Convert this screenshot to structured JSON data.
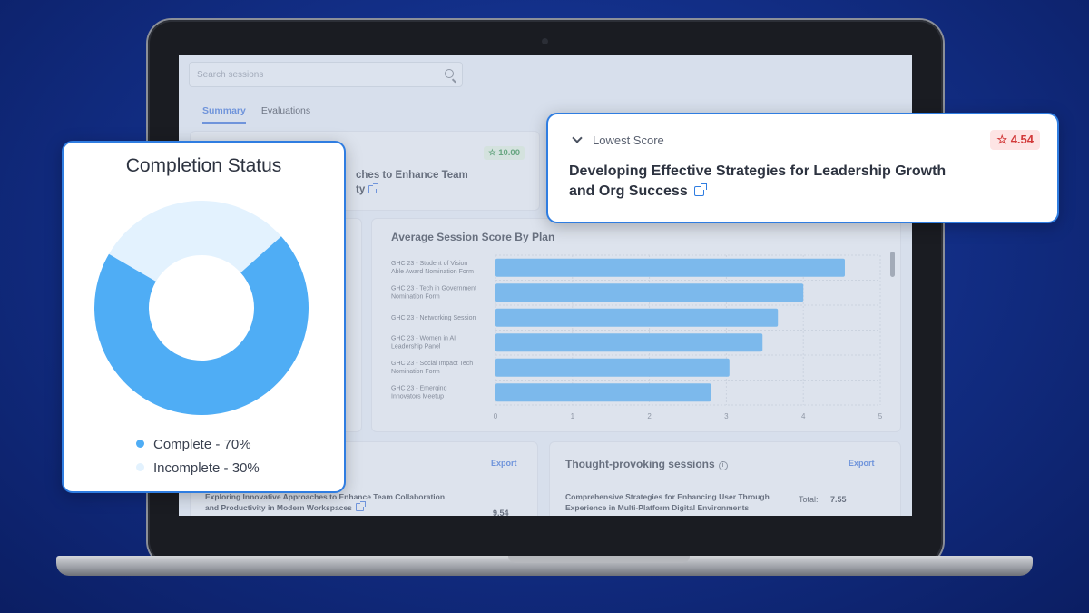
{
  "search": {
    "placeholder": "Search sessions"
  },
  "tabs": [
    {
      "label": "Summary",
      "active": true
    },
    {
      "label": "Evaluations",
      "active": false
    }
  ],
  "highest": {
    "score": "10.00",
    "title_line1": "ches to Enhance Team",
    "title_line2": "ty"
  },
  "score_chart": {
    "title": "Average Session Score By Plan"
  },
  "chart_data": {
    "type": "bar",
    "orientation": "horizontal",
    "title": "Average Session Score By Plan",
    "categories": [
      "GHC 23 - Student of Vision Able Award Nomination Form",
      "GHC 23 - Tech in Government Nomination Form",
      "GHC 23 - Networking Session",
      "GHC 23 - Women in AI Leadership Panel",
      "GHC 23 - Social Impact Tech Nomination Form",
      "GHC 23 - Emerging Innovators Meetup"
    ],
    "values": [
      4.54,
      4.0,
      3.67,
      3.47,
      3.04,
      2.8
    ],
    "xlim": [
      0,
      5
    ],
    "xticks": [
      "0",
      "1",
      "2",
      "3",
      "4",
      "5"
    ],
    "grid": true,
    "color": "#4fa8ee"
  },
  "bottom_left": {
    "export_label": "Export",
    "row_text_line1": "Exploring Innovative Approaches to Enhance Team Collaboration",
    "row_text_line2": "and Productivity in Modern Workspaces",
    "score": "9.54"
  },
  "bottom_right": {
    "title": "Thought-provoking sessions",
    "export_label": "Export",
    "row_text_line1": "Comprehensive Strategies for Enhancing User Through",
    "row_text_line2": "Experience in Multi-Platform Digital Environments",
    "total_label": "Total:",
    "total_value": "7.55"
  },
  "completion": {
    "title": "Completion Status",
    "complete_label": "Complete - 70%",
    "incomplete_label": "Incomplete - 30%",
    "complete_fraction": 0.7,
    "incomplete_fraction": 0.3,
    "complete_color": "#4fadf5",
    "incomplete_color": "#e3f2fe"
  },
  "lowest": {
    "label": "Lowest Score",
    "score": "4.54",
    "title_line1": "Developing Effective Strategies for Leadership Growth",
    "title_line2": "and Org Success"
  }
}
